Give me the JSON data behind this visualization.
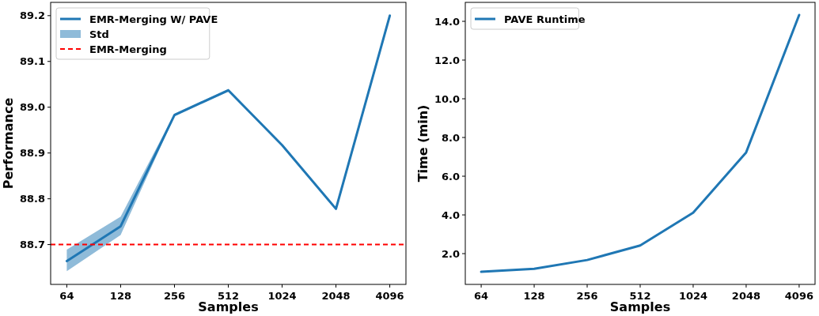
{
  "chart_data": [
    {
      "type": "line",
      "xlabel": "Samples",
      "ylabel": "Performance",
      "categories": [
        "64",
        "128",
        "256",
        "512",
        "1024",
        "2048",
        "4096"
      ],
      "ylim": [
        88.613,
        89.229
      ],
      "yticks": [
        {
          "value": 88.7,
          "label": "88.7"
        },
        {
          "value": 88.8,
          "label": "88.8"
        },
        {
          "value": 88.9,
          "label": "88.9"
        },
        {
          "value": 89.0,
          "label": "89.0"
        },
        {
          "value": 89.1,
          "label": "89.1"
        },
        {
          "value": 89.2,
          "label": "89.2"
        }
      ],
      "legend": "top left",
      "grid": false,
      "line_style": "solid",
      "marker": "none",
      "series": [
        {
          "name": "EMR-Merging W/ PAVE",
          "type": "line",
          "color": "#1f77b4",
          "values": [
            88.664,
            88.74,
            88.983,
            89.037,
            88.917,
            88.778,
            89.2
          ],
          "lower": [
            88.642,
            88.721,
            88.98,
            89.034,
            88.916,
            88.777,
            89.199
          ],
          "upper": [
            88.689,
            88.761,
            88.986,
            89.04,
            88.918,
            88.779,
            89.201
          ]
        },
        {
          "name": "Std",
          "type": "area",
          "color": "#8fbbd9",
          "values": [
            null,
            null,
            null,
            null,
            null,
            null,
            null
          ]
        }
      ],
      "ref_lines": [
        {
          "axis": "y",
          "value": 88.7,
          "label": "EMR-Merging",
          "color": "#ff0000",
          "line_style": "dashed"
        }
      ]
    },
    {
      "type": "line",
      "xlabel": "Samples",
      "ylabel": "Time (min)",
      "categories": [
        "64",
        "128",
        "256",
        "512",
        "1024",
        "2048",
        "4096"
      ],
      "ylim": [
        0.41,
        14.98
      ],
      "yticks": [
        {
          "value": 2,
          "label": "2.0"
        },
        {
          "value": 4,
          "label": "4.0"
        },
        {
          "value": 6,
          "label": "6.0"
        },
        {
          "value": 8,
          "label": "8.0"
        },
        {
          "value": 10,
          "label": "10.0"
        },
        {
          "value": 12,
          "label": "12.0"
        },
        {
          "value": 14,
          "label": "14.0"
        }
      ],
      "legend": "top left",
      "grid": false,
      "line_style": "solid",
      "marker": "none",
      "series": [
        {
          "name": "PAVE Runtime",
          "type": "line",
          "color": "#1f77b4",
          "values": [
            1.06,
            1.22,
            1.67,
            2.42,
            4.11,
            7.23,
            14.33
          ]
        }
      ]
    }
  ]
}
